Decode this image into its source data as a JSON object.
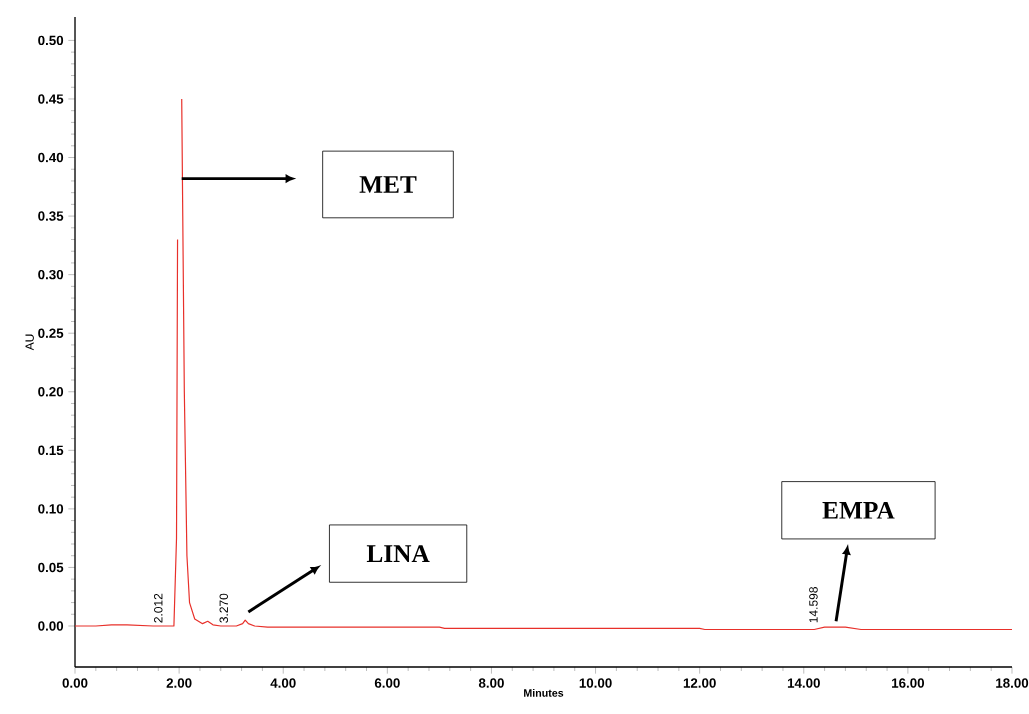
{
  "chart_data": {
    "type": "line",
    "xlabel": "Minutes",
    "ylabel": "AU",
    "x": [
      0,
      0.4,
      0.7,
      1.0,
      1.5,
      1.9,
      1.95,
      1.97,
      1.99,
      2.01,
      2.03,
      2.05,
      2.07,
      2.1,
      2.15,
      2.2,
      2.3,
      2.45,
      2.55,
      2.65,
      2.8,
      3.1,
      3.22,
      3.27,
      3.33,
      3.45,
      3.7,
      5.0,
      7.0,
      7.1,
      10.0,
      12.0,
      12.1,
      14.2,
      14.4,
      14.6,
      14.8,
      15.1,
      16.0,
      18.0
    ],
    "series": [
      {
        "color": "#e8302a",
        "values": [
          0.0,
          0.0,
          0.001,
          0.001,
          0.0,
          0.0,
          0.075,
          0.33,
          null,
          null,
          null,
          0.45,
          0.35,
          0.2,
          0.06,
          0.02,
          0.006,
          0.002,
          0.004,
          0.001,
          0.0,
          0.0,
          0.002,
          0.005,
          0.002,
          0.0,
          -0.001,
          -0.001,
          -0.001,
          -0.002,
          -0.002,
          -0.002,
          -0.003,
          -0.003,
          -0.001,
          -0.001,
          -0.001,
          -0.003,
          -0.003,
          -0.003
        ]
      }
    ],
    "xlim": [
      0,
      18
    ],
    "ylim": [
      -0.035,
      0.52
    ],
    "xticks": [
      {
        "value": 0,
        "label": "0.00"
      },
      {
        "value": 2,
        "label": "2.00"
      },
      {
        "value": 4,
        "label": "4.00"
      },
      {
        "value": 6,
        "label": "6.00"
      },
      {
        "value": 8,
        "label": "8.00"
      },
      {
        "value": 10,
        "label": "10.00"
      },
      {
        "value": 12,
        "label": "12.00"
      },
      {
        "value": 14,
        "label": "14.00"
      },
      {
        "value": 16,
        "label": "16.00"
      },
      {
        "value": 18,
        "label": "18.00"
      }
    ],
    "yticks": [
      {
        "value": 0,
        "label": "0.00"
      },
      {
        "value": 0.05,
        "label": "0.05"
      },
      {
        "value": 0.1,
        "label": "0.10"
      },
      {
        "value": 0.15,
        "label": "0.15"
      },
      {
        "value": 0.2,
        "label": "0.20"
      },
      {
        "value": 0.25,
        "label": "0.25"
      },
      {
        "value": 0.3,
        "label": "0.30"
      },
      {
        "value": 0.35,
        "label": "0.35"
      },
      {
        "value": 0.4,
        "label": "0.40"
      },
      {
        "value": 0.45,
        "label": "0.45"
      },
      {
        "value": 0.5,
        "label": "0.50"
      }
    ],
    "annotations": [
      "2.012",
      "3.270",
      "14.598",
      "MET",
      "LINA",
      "EMPA"
    ]
  }
}
